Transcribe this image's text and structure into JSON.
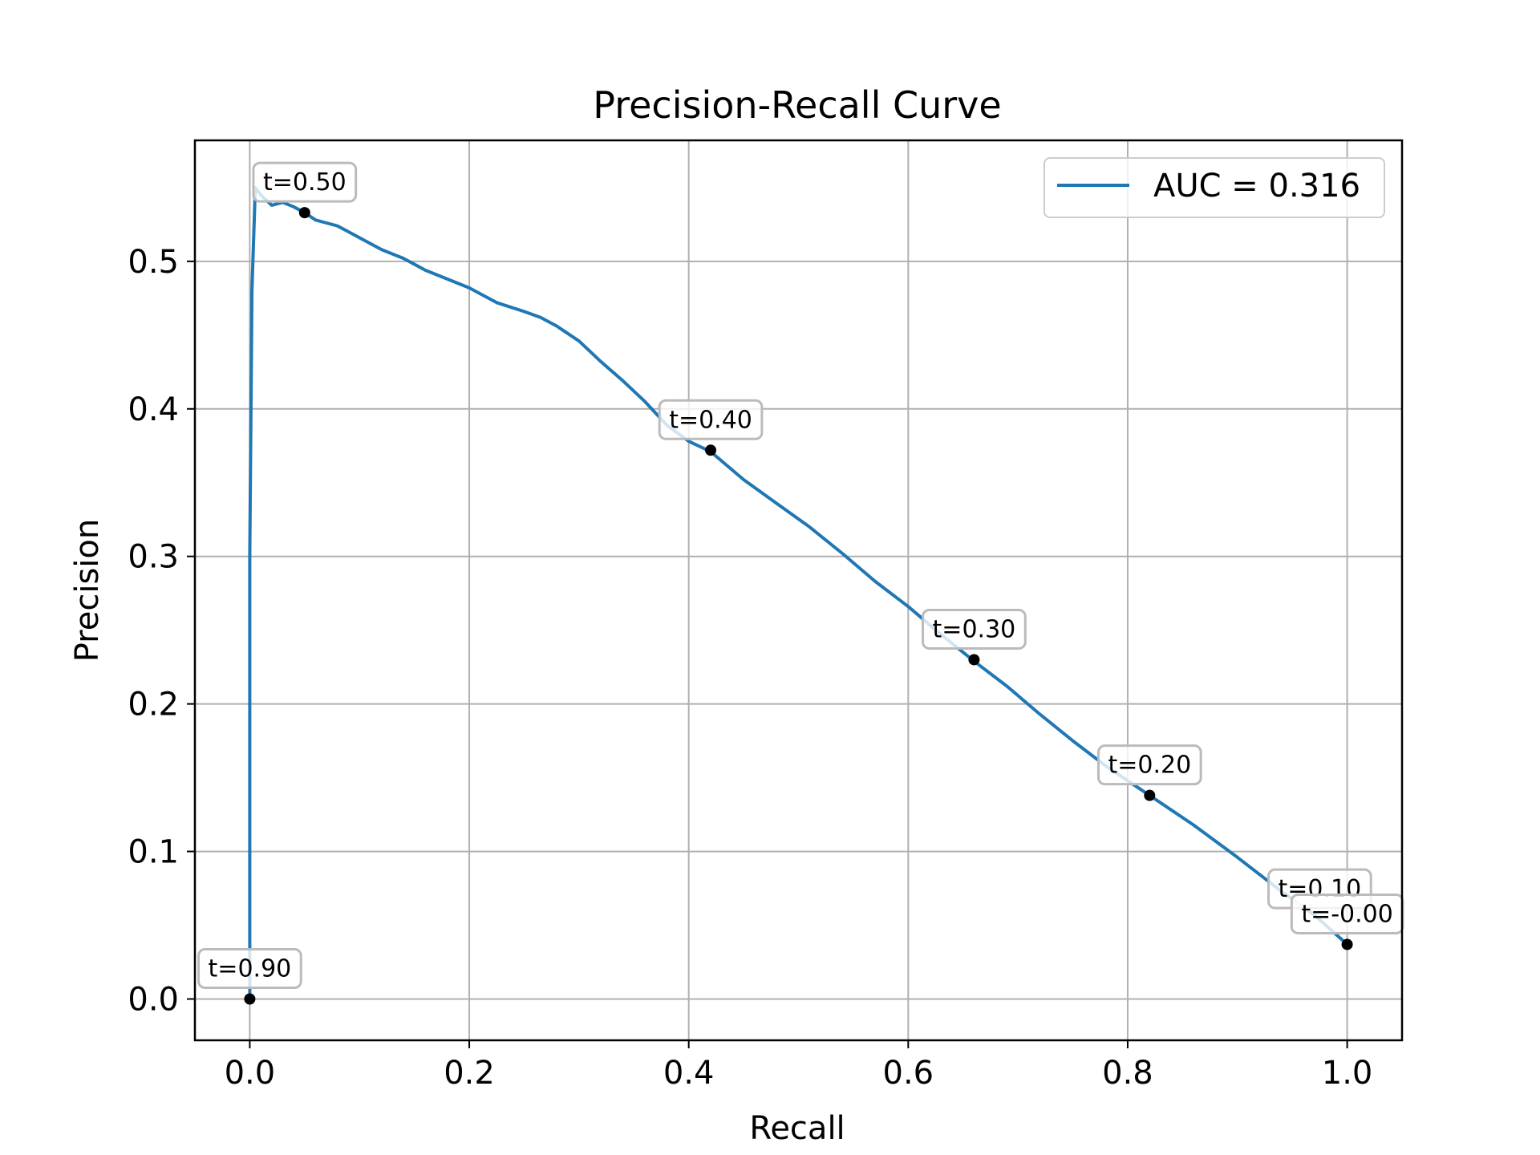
{
  "chart_data": {
    "type": "line",
    "title": "Precision-Recall Curve",
    "xlabel": "Recall",
    "ylabel": "Precision",
    "xlim": [
      -0.05,
      1.05
    ],
    "ylim": [
      -0.028,
      0.582
    ],
    "xticks": [
      0.0,
      0.2,
      0.4,
      0.6,
      0.8,
      1.0
    ],
    "xtick_labels": [
      "0.0",
      "0.2",
      "0.4",
      "0.6",
      "0.8",
      "1.0"
    ],
    "yticks": [
      0.0,
      0.1,
      0.2,
      0.3,
      0.4,
      0.5
    ],
    "ytick_labels": [
      "0.0",
      "0.1",
      "0.2",
      "0.3",
      "0.4",
      "0.5"
    ],
    "grid": true,
    "legend_position": "top-right",
    "series": [
      {
        "name": "AUC = 0.316",
        "color": "#1f77b4",
        "x": [
          0.0,
          0.0,
          0.0,
          0.002,
          0.005,
          0.01,
          0.02,
          0.03,
          0.04,
          0.05,
          0.06,
          0.07,
          0.08,
          0.09,
          0.1,
          0.12,
          0.14,
          0.16,
          0.18,
          0.2,
          0.225,
          0.25,
          0.265,
          0.28,
          0.3,
          0.32,
          0.34,
          0.36,
          0.38,
          0.4,
          0.42,
          0.45,
          0.48,
          0.51,
          0.54,
          0.57,
          0.6,
          0.63,
          0.66,
          0.69,
          0.72,
          0.75,
          0.78,
          0.82,
          0.86,
          0.9,
          0.94,
          0.97,
          1.0
        ],
        "y": [
          0.0,
          0.03,
          0.3,
          0.48,
          0.55,
          0.545,
          0.538,
          0.54,
          0.537,
          0.533,
          0.528,
          0.526,
          0.524,
          0.52,
          0.516,
          0.508,
          0.502,
          0.494,
          0.488,
          0.482,
          0.472,
          0.466,
          0.462,
          0.456,
          0.446,
          0.432,
          0.419,
          0.405,
          0.389,
          0.378,
          0.371,
          0.352,
          0.336,
          0.32,
          0.302,
          0.283,
          0.266,
          0.247,
          0.229,
          0.212,
          0.193,
          0.175,
          0.158,
          0.138,
          0.118,
          0.096,
          0.073,
          0.057,
          0.037
        ]
      }
    ],
    "points": [
      {
        "x": 0.0,
        "y": 0.0
      },
      {
        "x": 0.05,
        "y": 0.533
      },
      {
        "x": 0.42,
        "y": 0.372
      },
      {
        "x": 0.66,
        "y": 0.23
      },
      {
        "x": 0.82,
        "y": 0.138
      },
      {
        "x": 1.0,
        "y": 0.037
      }
    ],
    "annotations": [
      {
        "text": "t=0.90",
        "x": 0.0,
        "y": 0.0
      },
      {
        "text": "t=0.50",
        "x": 0.05,
        "y": 0.533
      },
      {
        "text": "t=0.40",
        "x": 0.42,
        "y": 0.372
      },
      {
        "text": "t=0.30",
        "x": 0.66,
        "y": 0.23
      },
      {
        "text": "t=0.20",
        "x": 0.82,
        "y": 0.138
      },
      {
        "text": "t=0.10",
        "x": 0.975,
        "y": 0.054
      },
      {
        "text": "t=-0.00",
        "x": 1.0,
        "y": 0.037
      }
    ]
  }
}
